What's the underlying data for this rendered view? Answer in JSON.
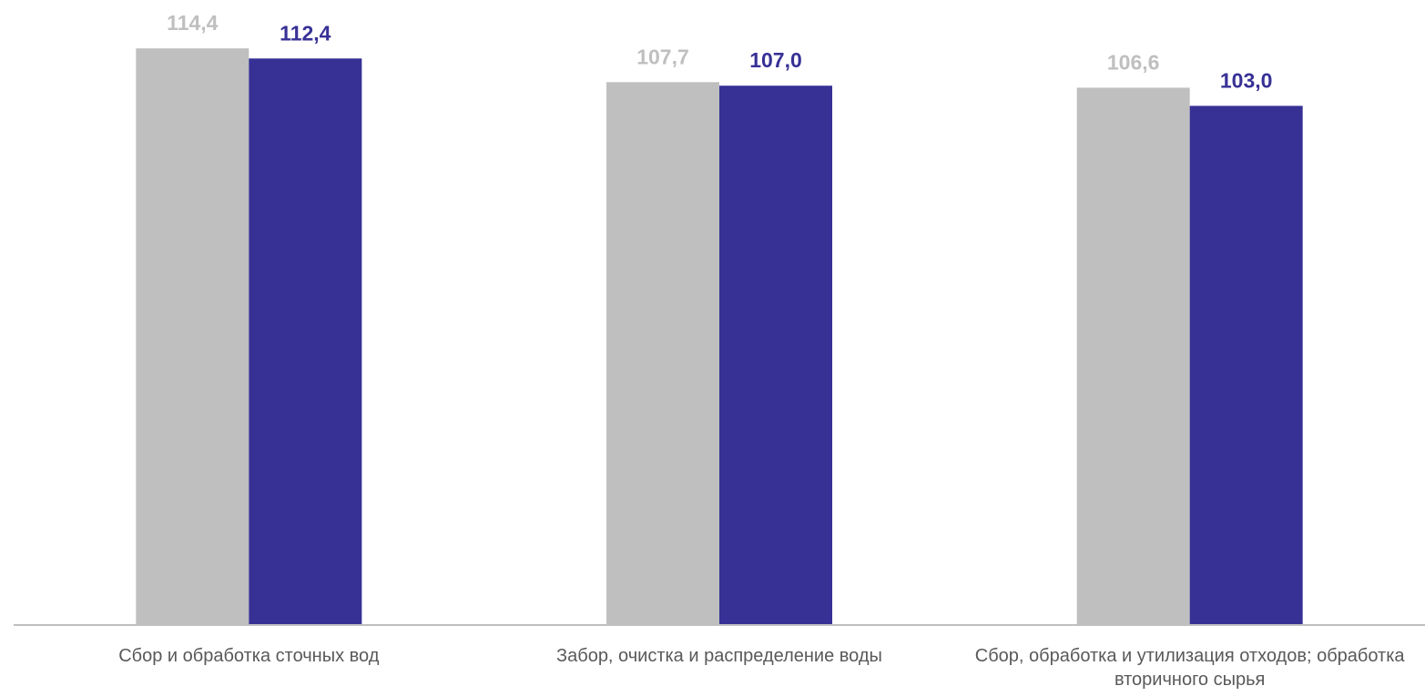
{
  "chart_data": {
    "type": "bar",
    "categories": [
      "Сбор и обработка сточных вод",
      "Забор, очистка и распределение воды",
      "Сбор, обработка и утилизация отходов; обработка вторичного сырья"
    ],
    "series": [
      {
        "color": "#bfbfbf",
        "values": [
          114.4,
          107.7,
          106.6
        ],
        "value_labels": [
          "114,4",
          "107,7",
          "106,6"
        ]
      },
      {
        "color": "#373196",
        "values": [
          112.4,
          107.0,
          103.0
        ],
        "value_labels": [
          "112,4",
          "107,0",
          "103,0"
        ]
      }
    ],
    "ylim": [
      0,
      124
    ],
    "grid": false
  }
}
